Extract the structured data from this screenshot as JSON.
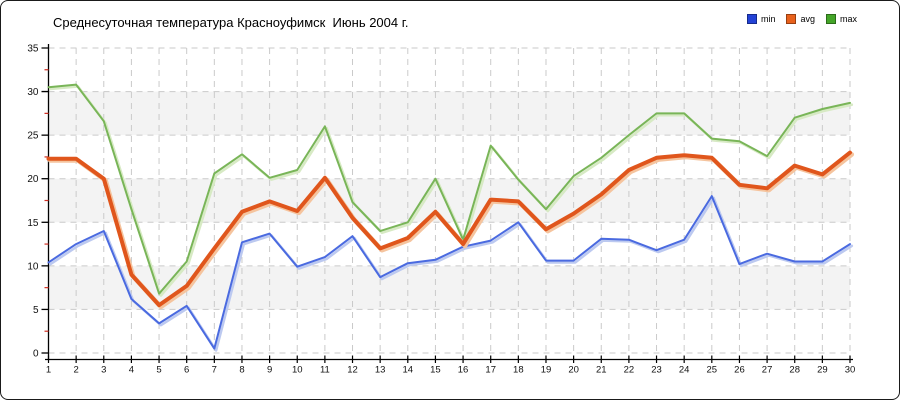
{
  "title": "Среднесуточная температура Красноуфимск  Июнь 2004 г.",
  "legend": [
    {
      "label": "min",
      "color": "#2342d6"
    },
    {
      "label": "avg",
      "color": "#e8611c"
    },
    {
      "label": "max",
      "color": "#44a528"
    }
  ],
  "chart_data": {
    "type": "line",
    "title": "Среднесуточная температура Красноуфимск  Июнь 2004 г.",
    "xlabel": "",
    "ylabel": "",
    "x": [
      1,
      2,
      3,
      4,
      5,
      6,
      7,
      8,
      9,
      10,
      11,
      12,
      13,
      14,
      15,
      16,
      17,
      18,
      19,
      20,
      21,
      22,
      23,
      24,
      25,
      26,
      27,
      28,
      29,
      30
    ],
    "series": [
      {
        "name": "max",
        "color": "#79b558",
        "shadow": "#d7eac4",
        "width": 2,
        "values": [
          30.5,
          30.8,
          26.6,
          16.5,
          6.8,
          10.5,
          20.6,
          22.8,
          20.1,
          21,
          26,
          17.3,
          14,
          15,
          20,
          13,
          23.8,
          19.9,
          16.5,
          20.3,
          22.4,
          25,
          27.5,
          27.5,
          24.6,
          24.3,
          22.6,
          27,
          28,
          28.7
        ]
      },
      {
        "name": "min",
        "color": "#4a6ae0",
        "shadow": "#bcc9f0",
        "width": 2,
        "values": [
          10.4,
          12.5,
          14,
          6.2,
          3.4,
          5.4,
          0.5,
          12.7,
          13.7,
          9.9,
          11,
          13.4,
          8.7,
          10.3,
          10.7,
          12.2,
          12.9,
          15,
          10.6,
          10.6,
          13.1,
          13,
          11.8,
          13,
          18,
          10.2,
          11.4,
          10.5,
          10.5,
          12.5
        ]
      },
      {
        "name": "avg",
        "color": "#e0561c",
        "shadow": "#f5c49e",
        "width": 4,
        "values": [
          22.3,
          22.3,
          20,
          9,
          5.5,
          7.7,
          12,
          16.2,
          17.4,
          16.3,
          20.1,
          15.5,
          12,
          13.2,
          16.2,
          12.5,
          17.6,
          17.4,
          14.2,
          16,
          18.2,
          21,
          22.4,
          22.7,
          22.4,
          19.3,
          18.9,
          21.5,
          20.5,
          23
        ]
      }
    ],
    "ylim": [
      0,
      35
    ],
    "yticks": [
      0,
      5,
      10,
      15,
      20,
      25,
      30,
      35
    ],
    "y_minor_ticks": [
      2.5,
      7.5,
      12.5,
      17.5,
      22.5,
      27.5,
      32.5
    ],
    "gray_bands": [
      [
        25,
        30
      ],
      [
        15,
        20
      ],
      [
        5,
        10
      ]
    ],
    "grid": true,
    "legend_position": "top-right",
    "grid_color": "#cacaca",
    "band_color": "#f3f3f3",
    "axis_color": "#000000",
    "minor_tick_color": "#d03024",
    "tick_label_color": "#111111"
  }
}
